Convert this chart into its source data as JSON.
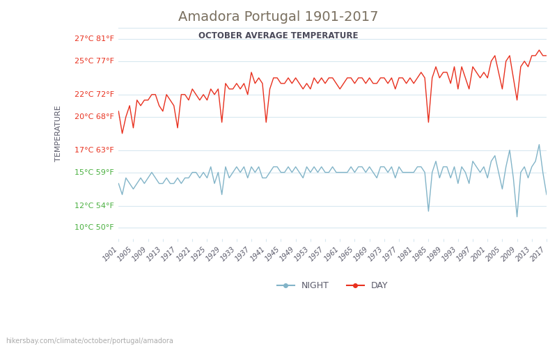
{
  "title": "Amadora Portugal 1901-2017",
  "subtitle": "OCTOBER AVERAGE TEMPERATURE",
  "ylabel": "TEMPERATURE",
  "website": "hikersbay.com/climate/october/portugal/amadora",
  "years": [
    1901,
    1902,
    1903,
    1904,
    1905,
    1906,
    1907,
    1908,
    1909,
    1910,
    1911,
    1912,
    1913,
    1914,
    1915,
    1916,
    1917,
    1918,
    1919,
    1920,
    1921,
    1922,
    1923,
    1924,
    1925,
    1926,
    1927,
    1928,
    1929,
    1930,
    1931,
    1932,
    1933,
    1934,
    1935,
    1936,
    1937,
    1938,
    1939,
    1940,
    1941,
    1942,
    1943,
    1944,
    1945,
    1946,
    1947,
    1948,
    1949,
    1950,
    1951,
    1952,
    1953,
    1954,
    1955,
    1956,
    1957,
    1958,
    1959,
    1960,
    1961,
    1962,
    1963,
    1964,
    1965,
    1966,
    1967,
    1968,
    1969,
    1970,
    1971,
    1972,
    1973,
    1974,
    1975,
    1976,
    1977,
    1978,
    1979,
    1980,
    1981,
    1982,
    1983,
    1984,
    1985,
    1986,
    1987,
    1988,
    1989,
    1990,
    1991,
    1992,
    1993,
    1994,
    1995,
    1996,
    1997,
    1998,
    1999,
    2000,
    2001,
    2002,
    2003,
    2004,
    2005,
    2006,
    2007,
    2008,
    2009,
    2010,
    2011,
    2012,
    2013,
    2014,
    2015,
    2016,
    2017
  ],
  "day_temps": [
    20.5,
    18.5,
    20.0,
    21.0,
    19.0,
    21.5,
    21.0,
    21.5,
    21.5,
    22.0,
    22.0,
    21.0,
    20.5,
    22.0,
    21.5,
    21.0,
    19.0,
    22.0,
    22.0,
    21.5,
    22.5,
    22.0,
    21.5,
    22.0,
    21.5,
    22.5,
    22.0,
    22.5,
    19.5,
    23.0,
    22.5,
    22.5,
    23.0,
    22.5,
    23.0,
    22.0,
    24.0,
    23.0,
    23.5,
    23.0,
    19.5,
    22.5,
    23.5,
    23.5,
    23.0,
    23.0,
    23.5,
    23.0,
    23.5,
    23.0,
    22.5,
    23.0,
    22.5,
    23.5,
    23.0,
    23.5,
    23.0,
    23.5,
    23.5,
    23.0,
    22.5,
    23.0,
    23.5,
    23.5,
    23.0,
    23.5,
    23.5,
    23.0,
    23.5,
    23.0,
    23.0,
    23.5,
    23.5,
    23.0,
    23.5,
    22.5,
    23.5,
    23.5,
    23.0,
    23.5,
    23.0,
    23.5,
    24.0,
    23.5,
    19.5,
    23.5,
    24.5,
    23.5,
    24.0,
    24.0,
    23.0,
    24.5,
    22.5,
    24.5,
    23.5,
    22.5,
    24.5,
    24.0,
    23.5,
    24.0,
    23.5,
    25.0,
    25.5,
    24.0,
    22.5,
    25.0,
    25.5,
    23.5,
    21.5,
    24.5,
    25.0,
    24.5,
    25.5,
    25.5,
    26.0,
    25.5,
    25.5
  ],
  "night_temps": [
    14.0,
    13.0,
    14.5,
    14.0,
    13.5,
    14.0,
    14.5,
    14.0,
    14.5,
    15.0,
    14.5,
    14.0,
    14.0,
    14.5,
    14.0,
    14.0,
    14.5,
    14.0,
    14.5,
    14.5,
    15.0,
    15.0,
    14.5,
    15.0,
    14.5,
    15.5,
    14.0,
    15.0,
    13.0,
    15.5,
    14.5,
    15.0,
    15.5,
    15.0,
    15.5,
    14.5,
    15.5,
    15.0,
    15.5,
    14.5,
    14.5,
    15.0,
    15.5,
    15.5,
    15.0,
    15.0,
    15.5,
    15.0,
    15.5,
    15.0,
    14.5,
    15.5,
    15.0,
    15.5,
    15.0,
    15.5,
    15.0,
    15.0,
    15.5,
    15.0,
    15.0,
    15.0,
    15.0,
    15.5,
    15.0,
    15.5,
    15.5,
    15.0,
    15.5,
    15.0,
    14.5,
    15.5,
    15.5,
    15.0,
    15.5,
    14.5,
    15.5,
    15.0,
    15.0,
    15.0,
    15.0,
    15.5,
    15.5,
    15.0,
    11.5,
    15.0,
    16.0,
    14.5,
    15.5,
    15.5,
    14.5,
    15.5,
    14.0,
    15.5,
    15.0,
    14.0,
    16.0,
    15.5,
    15.0,
    15.5,
    14.5,
    16.0,
    16.5,
    15.0,
    13.5,
    15.5,
    17.0,
    14.5,
    11.0,
    15.0,
    15.5,
    14.5,
    15.5,
    16.0,
    17.5,
    15.0,
    13.0
  ],
  "day_color": "#e8301e",
  "night_color": "#82b4c8",
  "title_color": "#7a7060",
  "subtitle_color": "#4a4a5a",
  "axis_label_color": "#5a5a6a",
  "tick_color_red": "#e8301e",
  "tick_color_green": "#4ab040",
  "tick_label_color": "#6a6a7a",
  "grid_color": "#d8e8f0",
  "background_color": "#ffffff",
  "yticks_c": [
    10,
    12,
    15,
    17,
    20,
    22,
    25,
    27
  ],
  "yticks_f": [
    50,
    54,
    59,
    63,
    68,
    72,
    77,
    81
  ],
  "yticks_colors": [
    "green",
    "green",
    "green",
    "red",
    "red",
    "red",
    "red",
    "red"
  ],
  "ylim": [
    9,
    28
  ],
  "xtick_years": [
    1901,
    1905,
    1909,
    1913,
    1917,
    1921,
    1925,
    1929,
    1933,
    1937,
    1941,
    1945,
    1949,
    1953,
    1957,
    1961,
    1965,
    1969,
    1973,
    1977,
    1981,
    1985,
    1989,
    1993,
    1997,
    2001,
    2005,
    2009,
    2013,
    2017
  ]
}
